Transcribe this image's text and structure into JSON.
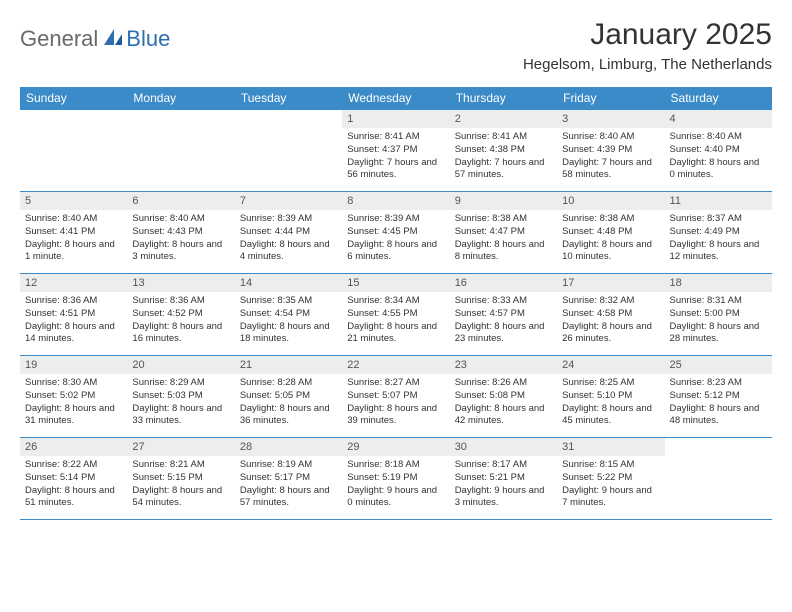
{
  "logo": {
    "part1": "General",
    "part2": "Blue"
  },
  "title": "January 2025",
  "location": "Hegelsom, Limburg, The Netherlands",
  "colors": {
    "header_bg": "#3b8bc9",
    "header_text": "#ffffff",
    "day_bg": "#eceded",
    "border": "#3b8bc9",
    "text": "#333333",
    "logo_gray": "#6a6a6a",
    "logo_blue": "#2f6fb0"
  },
  "day_names": [
    "Sunday",
    "Monday",
    "Tuesday",
    "Wednesday",
    "Thursday",
    "Friday",
    "Saturday"
  ],
  "weeks": [
    [
      null,
      null,
      null,
      {
        "n": "1",
        "sr": "8:41 AM",
        "ss": "4:37 PM",
        "dl": "7 hours and 56 minutes."
      },
      {
        "n": "2",
        "sr": "8:41 AM",
        "ss": "4:38 PM",
        "dl": "7 hours and 57 minutes."
      },
      {
        "n": "3",
        "sr": "8:40 AM",
        "ss": "4:39 PM",
        "dl": "7 hours and 58 minutes."
      },
      {
        "n": "4",
        "sr": "8:40 AM",
        "ss": "4:40 PM",
        "dl": "8 hours and 0 minutes."
      }
    ],
    [
      {
        "n": "5",
        "sr": "8:40 AM",
        "ss": "4:41 PM",
        "dl": "8 hours and 1 minute."
      },
      {
        "n": "6",
        "sr": "8:40 AM",
        "ss": "4:43 PM",
        "dl": "8 hours and 3 minutes."
      },
      {
        "n": "7",
        "sr": "8:39 AM",
        "ss": "4:44 PM",
        "dl": "8 hours and 4 minutes."
      },
      {
        "n": "8",
        "sr": "8:39 AM",
        "ss": "4:45 PM",
        "dl": "8 hours and 6 minutes."
      },
      {
        "n": "9",
        "sr": "8:38 AM",
        "ss": "4:47 PM",
        "dl": "8 hours and 8 minutes."
      },
      {
        "n": "10",
        "sr": "8:38 AM",
        "ss": "4:48 PM",
        "dl": "8 hours and 10 minutes."
      },
      {
        "n": "11",
        "sr": "8:37 AM",
        "ss": "4:49 PM",
        "dl": "8 hours and 12 minutes."
      }
    ],
    [
      {
        "n": "12",
        "sr": "8:36 AM",
        "ss": "4:51 PM",
        "dl": "8 hours and 14 minutes."
      },
      {
        "n": "13",
        "sr": "8:36 AM",
        "ss": "4:52 PM",
        "dl": "8 hours and 16 minutes."
      },
      {
        "n": "14",
        "sr": "8:35 AM",
        "ss": "4:54 PM",
        "dl": "8 hours and 18 minutes."
      },
      {
        "n": "15",
        "sr": "8:34 AM",
        "ss": "4:55 PM",
        "dl": "8 hours and 21 minutes."
      },
      {
        "n": "16",
        "sr": "8:33 AM",
        "ss": "4:57 PM",
        "dl": "8 hours and 23 minutes."
      },
      {
        "n": "17",
        "sr": "8:32 AM",
        "ss": "4:58 PM",
        "dl": "8 hours and 26 minutes."
      },
      {
        "n": "18",
        "sr": "8:31 AM",
        "ss": "5:00 PM",
        "dl": "8 hours and 28 minutes."
      }
    ],
    [
      {
        "n": "19",
        "sr": "8:30 AM",
        "ss": "5:02 PM",
        "dl": "8 hours and 31 minutes."
      },
      {
        "n": "20",
        "sr": "8:29 AM",
        "ss": "5:03 PM",
        "dl": "8 hours and 33 minutes."
      },
      {
        "n": "21",
        "sr": "8:28 AM",
        "ss": "5:05 PM",
        "dl": "8 hours and 36 minutes."
      },
      {
        "n": "22",
        "sr": "8:27 AM",
        "ss": "5:07 PM",
        "dl": "8 hours and 39 minutes."
      },
      {
        "n": "23",
        "sr": "8:26 AM",
        "ss": "5:08 PM",
        "dl": "8 hours and 42 minutes."
      },
      {
        "n": "24",
        "sr": "8:25 AM",
        "ss": "5:10 PM",
        "dl": "8 hours and 45 minutes."
      },
      {
        "n": "25",
        "sr": "8:23 AM",
        "ss": "5:12 PM",
        "dl": "8 hours and 48 minutes."
      }
    ],
    [
      {
        "n": "26",
        "sr": "8:22 AM",
        "ss": "5:14 PM",
        "dl": "8 hours and 51 minutes."
      },
      {
        "n": "27",
        "sr": "8:21 AM",
        "ss": "5:15 PM",
        "dl": "8 hours and 54 minutes."
      },
      {
        "n": "28",
        "sr": "8:19 AM",
        "ss": "5:17 PM",
        "dl": "8 hours and 57 minutes."
      },
      {
        "n": "29",
        "sr": "8:18 AM",
        "ss": "5:19 PM",
        "dl": "9 hours and 0 minutes."
      },
      {
        "n": "30",
        "sr": "8:17 AM",
        "ss": "5:21 PM",
        "dl": "9 hours and 3 minutes."
      },
      {
        "n": "31",
        "sr": "8:15 AM",
        "ss": "5:22 PM",
        "dl": "9 hours and 7 minutes."
      },
      null
    ]
  ],
  "labels": {
    "sunrise": "Sunrise:",
    "sunset": "Sunset:",
    "daylight": "Daylight:"
  }
}
